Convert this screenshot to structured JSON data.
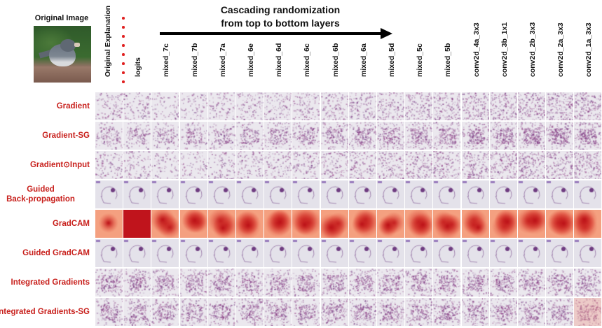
{
  "figure": {
    "original_image_label": "Original Image",
    "title_line1": "Cascading randomization",
    "title_line2": "from top to bottom layers",
    "columns": [
      "Original Explanation",
      "logits",
      "mixed_7c",
      "mixed_7b",
      "mixed_7a",
      "mixed_6e",
      "mixed_6d",
      "mixed_6c",
      "mixed_6b",
      "mixed_6a",
      "mixed_5d",
      "mixed_5c",
      "mixed_5b",
      "conv2d_4a_3x3",
      "conv2d_3b_1x1",
      "conv2d_2b_3x3",
      "conv2d_2a_3x3",
      "conv2d_1a_3x3"
    ],
    "rows": [
      {
        "label": "Gradient",
        "style": "speckle"
      },
      {
        "label": "Gradient-SG",
        "style": "speckle-sg"
      },
      {
        "label": "Gradient⊙Input",
        "style": "speckle"
      },
      {
        "label": "Guided Back-propagation",
        "line1": "Guided",
        "line2": "Back-propagation",
        "style": "guided"
      },
      {
        "label": "GradCAM",
        "style": "gradcam"
      },
      {
        "label": "Guided GradCAM",
        "style": "guided"
      },
      {
        "label": "Integrated Gradients",
        "style": "speckle-ig"
      },
      {
        "label": "Integrated Gradients-SG",
        "style": "speckle-ig"
      }
    ],
    "colors": {
      "row_label": "#c8201c",
      "saliency": "#7a3a80",
      "gradcam": "#c8141c"
    }
  }
}
